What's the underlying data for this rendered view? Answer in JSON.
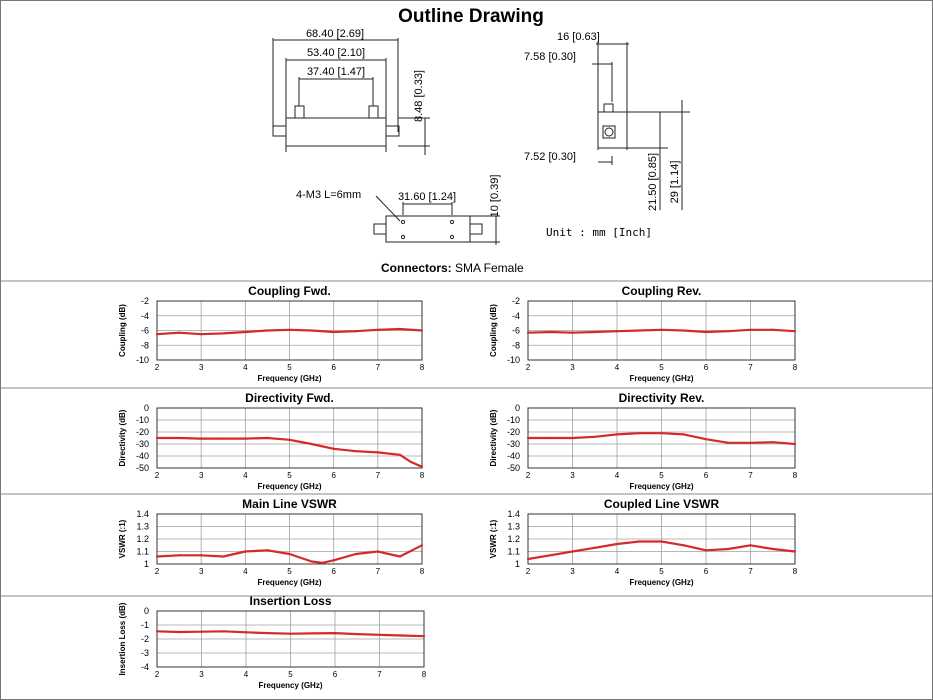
{
  "outline": {
    "title": "Outline Drawing",
    "dims_top": [
      "68.40 [2.69]",
      "53.40 [2.10]",
      "37.40 [1.47]",
      "8.48 [0.33]"
    ],
    "dims_side": [
      "16 [0.63]",
      "7.58 [0.30]",
      "7.52 [0.30]",
      "21.50 [0.85]",
      "29 [1.14]"
    ],
    "dims_bottom": [
      "4-M3 L=6mm",
      "31.60 [1.24]",
      "10 [0.39]"
    ],
    "unit_label": "Unit : mm [Inch]",
    "connectors_label": "Connectors:",
    "connectors_value": "SMA Female"
  },
  "colors": {
    "trace": "#d42a2a",
    "grid": "#a0a0a0",
    "text": "#111111"
  },
  "chart_data": [
    {
      "type": "line",
      "title": "Coupling Fwd.",
      "xlabel": "Frequency (GHz)",
      "ylabel": "Coupling (dB)",
      "xlim": [
        2,
        8
      ],
      "ylim": [
        -10,
        -2
      ],
      "x_ticks": [
        2,
        3,
        4,
        5,
        6,
        7,
        8
      ],
      "y_ticks": [
        -2,
        -4,
        -6,
        -8,
        -10
      ],
      "x": [
        2,
        2.5,
        3,
        3.5,
        4,
        4.5,
        5,
        5.5,
        6,
        6.5,
        7,
        7.5,
        8
      ],
      "series": [
        {
          "values": [
            -6.5,
            -6.3,
            -6.5,
            -6.4,
            -6.2,
            -6.0,
            -5.9,
            -6.0,
            -6.2,
            -6.1,
            -5.9,
            -5.8,
            -6.0
          ]
        }
      ]
    },
    {
      "type": "line",
      "title": "Coupling Rev.",
      "xlabel": "Frequency (GHz)",
      "ylabel": "Coupling (dB)",
      "xlim": [
        2,
        8
      ],
      "ylim": [
        -10,
        -2
      ],
      "x_ticks": [
        2,
        3,
        4,
        5,
        6,
        7,
        8
      ],
      "y_ticks": [
        -2,
        -4,
        -6,
        -8,
        -10
      ],
      "x": [
        2,
        2.5,
        3,
        3.5,
        4,
        4.5,
        5,
        5.5,
        6,
        6.5,
        7,
        7.5,
        8
      ],
      "series": [
        {
          "values": [
            -6.3,
            -6.2,
            -6.3,
            -6.2,
            -6.1,
            -6.0,
            -5.9,
            -6.0,
            -6.2,
            -6.1,
            -5.9,
            -5.9,
            -6.1
          ]
        }
      ]
    },
    {
      "type": "line",
      "title": "Directivity Fwd.",
      "xlabel": "Frequency (GHz)",
      "ylabel": "Directivity (dB)",
      "xlim": [
        2,
        8
      ],
      "ylim": [
        -50,
        0
      ],
      "x_ticks": [
        2,
        3,
        4,
        5,
        6,
        7,
        8
      ],
      "y_ticks": [
        0,
        -10,
        -20,
        -30,
        -40,
        -50
      ],
      "x": [
        2,
        2.5,
        3,
        3.5,
        4,
        4.5,
        5,
        5.5,
        6,
        6.5,
        7,
        7.5,
        7.75,
        8
      ],
      "series": [
        {
          "values": [
            -25,
            -25,
            -25.5,
            -25.5,
            -25.5,
            -25,
            -26.5,
            -30,
            -34,
            -36,
            -37,
            -39,
            -45,
            -49
          ]
        }
      ]
    },
    {
      "type": "line",
      "title": "Directivity Rev.",
      "xlabel": "Frequency (GHz)",
      "ylabel": "Directivity (dB)",
      "xlim": [
        2,
        8
      ],
      "ylim": [
        -50,
        0
      ],
      "x_ticks": [
        2,
        3,
        4,
        5,
        6,
        7,
        8
      ],
      "y_ticks": [
        0,
        -10,
        -20,
        -30,
        -40,
        -50
      ],
      "x": [
        2,
        2.5,
        3,
        3.5,
        4,
        4.5,
        5,
        5.5,
        6,
        6.5,
        7,
        7.5,
        8
      ],
      "series": [
        {
          "values": [
            -25,
            -25,
            -25,
            -24,
            -22,
            -21,
            -21,
            -22,
            -26,
            -29,
            -29,
            -28.5,
            -30
          ]
        }
      ]
    },
    {
      "type": "line",
      "title": "Main Line VSWR",
      "xlabel": "Frequency (GHz)",
      "ylabel": "VSWR (:1)",
      "xlim": [
        2,
        8
      ],
      "ylim": [
        1,
        1.4
      ],
      "x_ticks": [
        2,
        3,
        4,
        5,
        6,
        7,
        8
      ],
      "y_ticks": [
        1.4,
        1.3,
        1.2,
        1.1,
        1
      ],
      "x": [
        2,
        2.5,
        3,
        3.5,
        4,
        4.5,
        5,
        5.5,
        5.75,
        6,
        6.5,
        7,
        7.5,
        8
      ],
      "series": [
        {
          "values": [
            1.06,
            1.07,
            1.07,
            1.06,
            1.1,
            1.11,
            1.08,
            1.02,
            1.01,
            1.03,
            1.08,
            1.1,
            1.06,
            1.15
          ]
        }
      ]
    },
    {
      "type": "line",
      "title": "Coupled Line VSWR",
      "xlabel": "Frequency (GHz)",
      "ylabel": "VSWR (:1)",
      "xlim": [
        2,
        8
      ],
      "ylim": [
        1,
        1.4
      ],
      "x_ticks": [
        2,
        3,
        4,
        5,
        6,
        7,
        8
      ],
      "y_ticks": [
        1.4,
        1.3,
        1.2,
        1.1,
        1
      ],
      "x": [
        2,
        2.5,
        3,
        3.5,
        4,
        4.5,
        5,
        5.5,
        6,
        6.5,
        7,
        7.5,
        8
      ],
      "series": [
        {
          "values": [
            1.04,
            1.07,
            1.1,
            1.13,
            1.16,
            1.18,
            1.18,
            1.15,
            1.11,
            1.12,
            1.15,
            1.12,
            1.1
          ]
        }
      ]
    },
    {
      "type": "line",
      "title": "Insertion Loss",
      "xlabel": "Frequency (GHz)",
      "ylabel": "Insertion Loss (dB)",
      "xlim": [
        2,
        8
      ],
      "ylim": [
        -4,
        0
      ],
      "x_ticks": [
        2,
        3,
        4,
        5,
        6,
        7,
        8
      ],
      "y_ticks": [
        0,
        -1,
        -2,
        -3,
        -4
      ],
      "x": [
        2,
        2.5,
        3,
        3.5,
        4,
        4.5,
        5,
        5.5,
        6,
        6.5,
        7,
        7.5,
        8
      ],
      "series": [
        {
          "values": [
            -1.45,
            -1.5,
            -1.48,
            -1.45,
            -1.52,
            -1.58,
            -1.62,
            -1.6,
            -1.58,
            -1.65,
            -1.7,
            -1.75,
            -1.8
          ]
        }
      ]
    }
  ]
}
